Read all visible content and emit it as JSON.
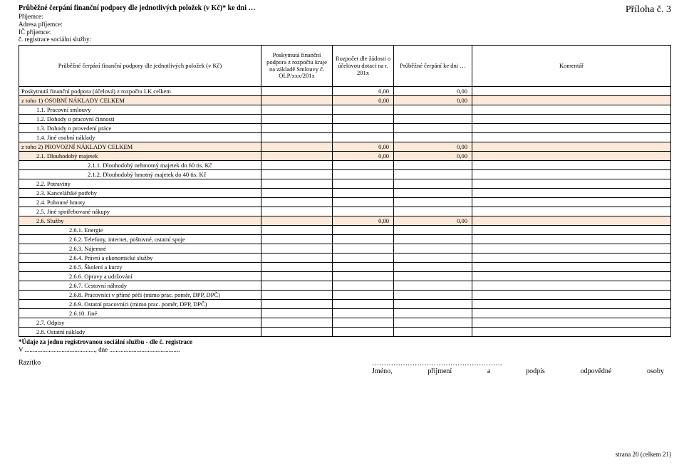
{
  "header": {
    "title": "Průběžné čerpání finanční podpory dle jednotlivých položek (v Kč)* ke dni …",
    "priloha": "Příloha č. 3",
    "meta": [
      "Příjemce:",
      "Adresa příjemce:",
      "IČ příjemce:",
      "č. registrace sociální služby:"
    ]
  },
  "columns": [
    "Průběžné čerpání finanční podpory dle jednotlivých položek (v Kč)",
    "Poskytnutá finanční podpora z rozpočtu kraje na základě Smlouvy č. OLP/xxx/201x",
    "Rozpočet dle žádosti o účelovou dotaci na r. 201x",
    "Průběžné čerpání ke dni …",
    "Komentář"
  ],
  "rows": [
    {
      "label": "Poskytnutá finanční podpora (účelová) z rozpočtu LK celkem",
      "indent": 0,
      "shade": false,
      "c2": "0,00",
      "c3": "0,00"
    },
    {
      "label": "z toho 1) OSOBNÍ NÁKLADY CELKEM",
      "indent": 0,
      "shade": true,
      "c2": "0,00",
      "c3": "0,00"
    },
    {
      "label": "1.1. Pracovní smlouvy",
      "indent": 1,
      "shade": false
    },
    {
      "label": "1.2. Dohody o pracovní činnosti",
      "indent": 1,
      "shade": false
    },
    {
      "label": "1.3. Dohody o provedení práce",
      "indent": 1,
      "shade": false
    },
    {
      "label": "1.4. Jiné osobní náklady",
      "indent": 1,
      "shade": false
    },
    {
      "label": "z toho 2) PROVOZNÍ NÁKLADY CELKEM",
      "indent": 0,
      "shade": true,
      "c2": "0,00",
      "c3": "0,00"
    },
    {
      "label": "2.1. Dlouhodobý majetek",
      "indent": 1,
      "shade": true,
      "c2": "0,00",
      "c3": "0,00"
    },
    {
      "label": "2.1.1. Dlouhodobý nehmotný majetek do 60 tis. Kč",
      "indent": 3,
      "shade": false
    },
    {
      "label": "2.1.2. Dlouhodobý hmotný majetek do 40 tis. Kč",
      "indent": 3,
      "shade": false
    },
    {
      "label": "2.2. Potraviny",
      "indent": 1,
      "shade": false
    },
    {
      "label": "2.3. Kancelářské potřeby",
      "indent": 1,
      "shade": false
    },
    {
      "label": "2.4. Pohonné hmoty",
      "indent": 1,
      "shade": false
    },
    {
      "label": "2.5. Jiné spotřebované nákupy",
      "indent": 1,
      "shade": false
    },
    {
      "label": "2.6. Služby",
      "indent": 1,
      "shade": true,
      "c2": "0,00",
      "c3": "0,00"
    },
    {
      "label": "2.6.1. Energie",
      "indent": 2,
      "shade": false
    },
    {
      "label": "2.6.2. Telefony, internet, poštovné, ostatní spoje",
      "indent": 2,
      "shade": false
    },
    {
      "label": "2.6.3. Nájemné",
      "indent": 2,
      "shade": false
    },
    {
      "label": "2.6.4. Právní a ekonomické služby",
      "indent": 2,
      "shade": false
    },
    {
      "label": "2.6.5. Školení a kurzy",
      "indent": 2,
      "shade": false
    },
    {
      "label": "2.6.6. Opravy a udržování",
      "indent": 2,
      "shade": false
    },
    {
      "label": "2.6.7. Cestovní náhrady",
      "indent": 2,
      "shade": false
    },
    {
      "label": "2.6.8. Pracovníci v přímé péči (mimo prac. poměr, DPP, DPČ)",
      "indent": 2,
      "shade": false
    },
    {
      "label": "2.6.9. Ostatní pracovníci (mimo prac. poměr, DPP, DPČ)",
      "indent": 2,
      "shade": false
    },
    {
      "label": "2.6.10. Jiné",
      "indent": 2,
      "shade": false
    },
    {
      "label": "2.7. Odpisy",
      "indent": 1,
      "shade": false
    },
    {
      "label": "2.8. Ostatní náklady",
      "indent": 1,
      "shade": false
    }
  ],
  "notes": {
    "note1": "*Údaje za jednu registrovanou sociální službu - dle č. registrace",
    "vline": "V ............................................, dne ............................................",
    "razitko": "Razítko",
    "signDots": "……………………………………………….",
    "signWords": [
      "Jméno,",
      "příjmení",
      "a",
      "podpis",
      "odpovědné",
      "osoby"
    ]
  },
  "footer": "strana 20 (celkem 21)",
  "style": {
    "shade_color": "#fde9d9",
    "border_color": "#000000",
    "background": "#ffffff"
  }
}
